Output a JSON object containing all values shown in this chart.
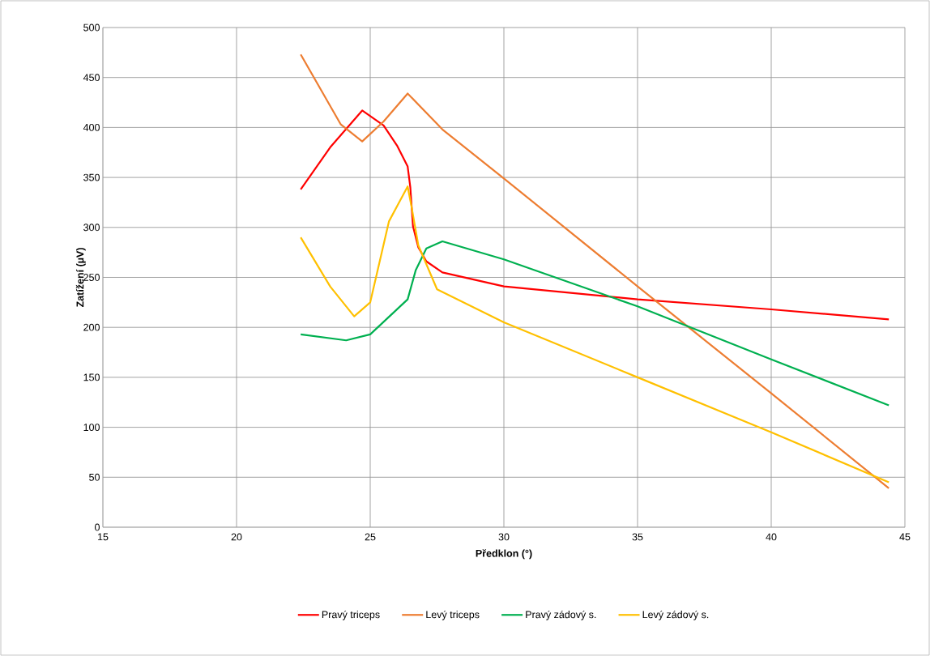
{
  "chart_data": {
    "type": "line",
    "xlabel": "Předklon (°)",
    "ylabel": "Zatížení (µV)",
    "xlim": [
      15,
      45
    ],
    "ylim": [
      0,
      500
    ],
    "xticks": [
      15,
      20,
      25,
      30,
      35,
      40,
      45
    ],
    "yticks": [
      0,
      50,
      100,
      150,
      200,
      250,
      300,
      350,
      400,
      450,
      500
    ],
    "grid": true,
    "legend": "bottom",
    "marker": "none",
    "line_style": "solid",
    "series": [
      {
        "name": "Pravý triceps",
        "color": "#ff0000",
        "x": [
          22.4,
          23.5,
          24.7,
          25.5,
          26.0,
          26.4,
          26.5,
          26.6,
          26.8,
          27.1,
          27.7,
          30,
          35,
          40,
          44.4
        ],
        "values": [
          338,
          380,
          417,
          402,
          382,
          361,
          340,
          301,
          280,
          266,
          255,
          241,
          228,
          218,
          208
        ]
      },
      {
        "name": "Levý triceps",
        "color": "#ed7d31",
        "x": [
          22.4,
          23.9,
          24.7,
          25.5,
          26.4,
          27.7,
          30,
          35,
          40,
          44.4
        ],
        "values": [
          473,
          403,
          386,
          406,
          434,
          398,
          349,
          241,
          134,
          39
        ]
      },
      {
        "name": "Pravý zádový s.",
        "color": "#00b050",
        "x": [
          22.4,
          24.1,
          25.0,
          26.4,
          26.7,
          27.1,
          27.7,
          30,
          35,
          40,
          44.4
        ],
        "values": [
          193,
          187,
          193,
          228,
          257,
          279,
          286,
          268,
          221,
          168,
          122
        ]
      },
      {
        "name": "Levý zádový s.",
        "color": "#ffc000",
        "x": [
          22.4,
          23.5,
          24.4,
          25.0,
          25.7,
          26.4,
          26.55,
          26.8,
          27.5,
          30,
          35,
          40,
          44.4
        ],
        "values": [
          290,
          241,
          211,
          225,
          306,
          341,
          320,
          282,
          238,
          205,
          150,
          95,
          45
        ]
      }
    ]
  }
}
